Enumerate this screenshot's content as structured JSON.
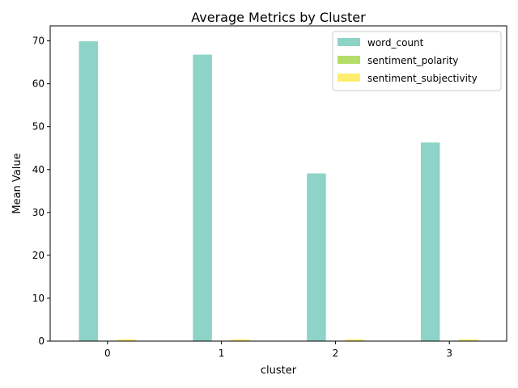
{
  "chart_data": {
    "type": "bar",
    "title": "Average Metrics by Cluster",
    "xlabel": "cluster",
    "ylabel": "Mean Value",
    "categories": [
      "0",
      "1",
      "2",
      "3"
    ],
    "ylim": [
      0,
      73.5
    ],
    "yticks": [
      0,
      10,
      20,
      30,
      40,
      50,
      60,
      70
    ],
    "legend_position": "top-right",
    "grid": false,
    "series": [
      {
        "name": "word_count",
        "color": "#8dd3c7",
        "values": [
          69.9,
          66.8,
          39.1,
          46.3
        ]
      },
      {
        "name": "sentiment_polarity",
        "color": "#b3de69",
        "values": [
          0.1,
          0.1,
          0.1,
          0.1
        ]
      },
      {
        "name": "sentiment_subjectivity",
        "color": "#ffed6f",
        "values": [
          0.4,
          0.4,
          0.4,
          0.4
        ]
      }
    ]
  }
}
